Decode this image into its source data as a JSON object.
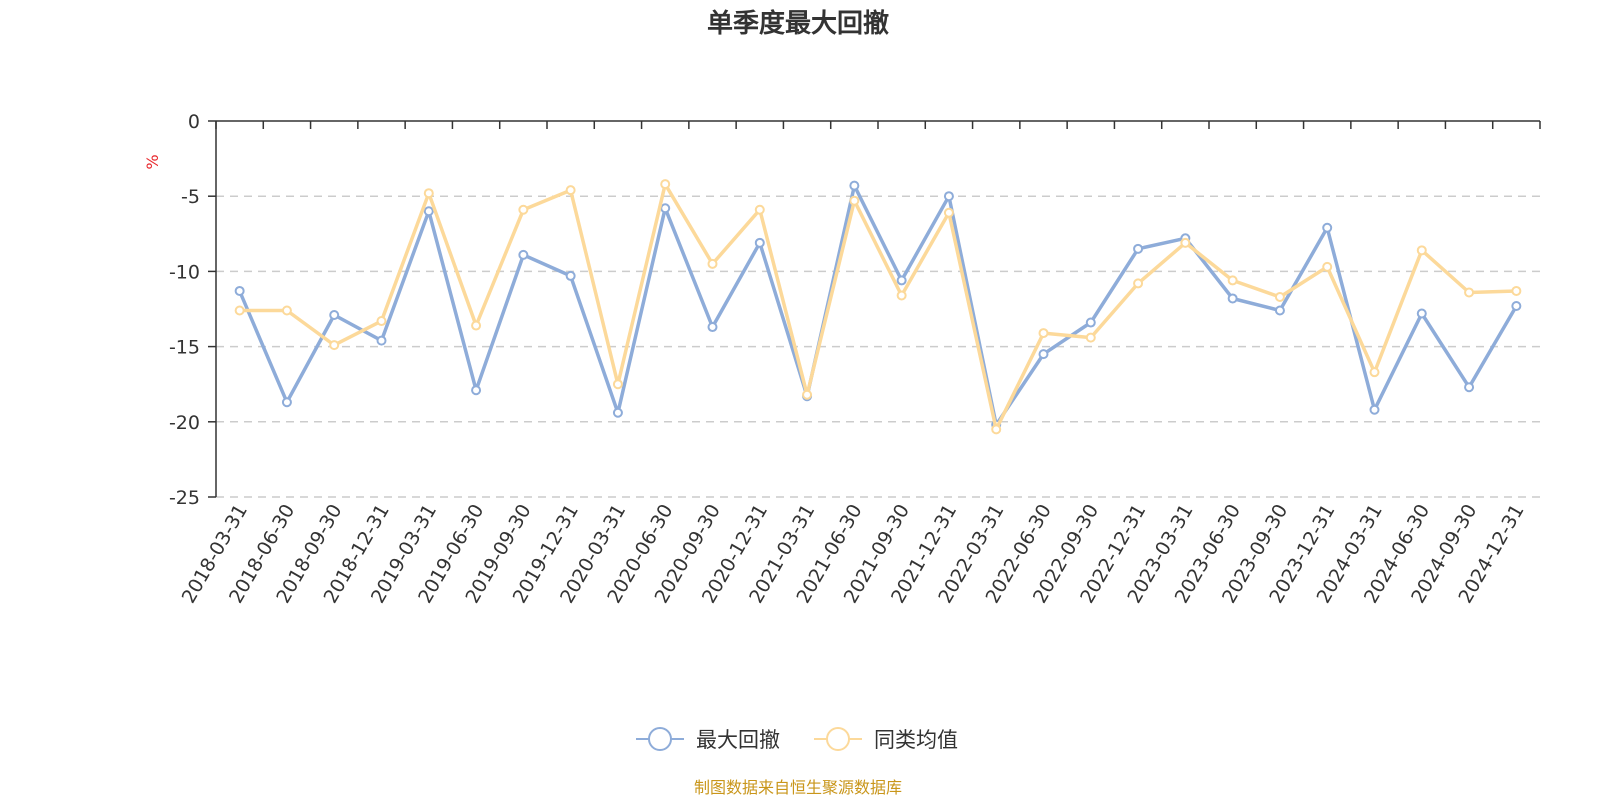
{
  "chart_data": {
    "type": "line",
    "title": "单季度最大回撤",
    "unit_label": "%",
    "ylim": [
      -25,
      0
    ],
    "yticks": [
      0,
      -5,
      -10,
      -15,
      -20,
      -25
    ],
    "grid": "horizontal-dashed",
    "legend_position": "bottom",
    "categories": [
      "2018-03-31",
      "2018-06-30",
      "2018-09-30",
      "2018-12-31",
      "2019-03-31",
      "2019-06-30",
      "2019-09-30",
      "2019-12-31",
      "2020-03-31",
      "2020-06-30",
      "2020-09-30",
      "2020-12-31",
      "2021-03-31",
      "2021-06-30",
      "2021-09-30",
      "2021-12-31",
      "2022-03-31",
      "2022-06-30",
      "2022-09-30",
      "2022-12-31",
      "2023-03-31",
      "2023-06-30",
      "2023-09-30",
      "2023-12-31",
      "2024-03-31",
      "2024-06-30",
      "2024-09-30",
      "2024-12-31"
    ],
    "series": [
      {
        "name": "最大回撤",
        "color": "#8eacd9",
        "values": [
          -11.3,
          -18.7,
          -12.9,
          -14.6,
          -6.0,
          -17.9,
          -8.9,
          -10.3,
          -19.4,
          -5.8,
          -13.7,
          -8.1,
          -18.3,
          -4.3,
          -10.6,
          -5.0,
          -20.2,
          -15.5,
          -13.4,
          -8.5,
          -7.8,
          -11.8,
          -12.6,
          -7.1,
          -19.2,
          -12.8,
          -17.7,
          -12.3
        ]
      },
      {
        "name": "同类均值",
        "color": "#fcd99a",
        "values": [
          -12.6,
          -12.6,
          -14.9,
          -13.3,
          -4.8,
          -13.6,
          -5.9,
          -4.6,
          -17.5,
          -4.2,
          -9.5,
          -5.9,
          -18.2,
          -5.3,
          -11.6,
          -6.1,
          -20.5,
          -14.1,
          -14.4,
          -10.8,
          -8.1,
          -10.6,
          -11.7,
          -9.7,
          -16.7,
          -8.6,
          -11.4,
          -11.3
        ]
      }
    ]
  },
  "source_text": "制图数据来自恒生聚源数据库"
}
